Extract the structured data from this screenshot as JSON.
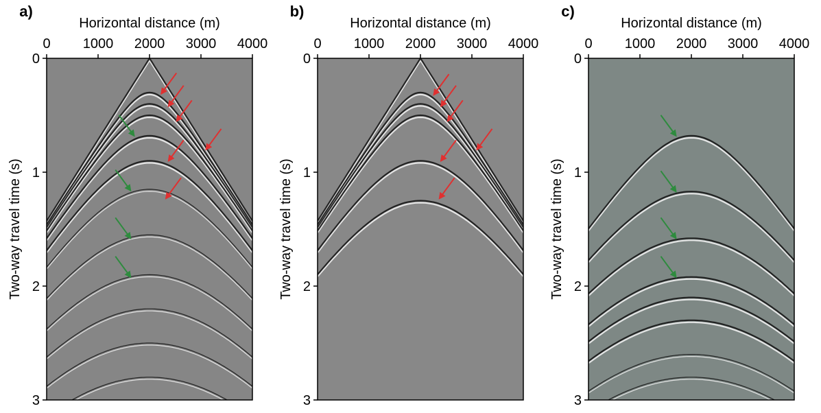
{
  "chart_data": [
    {
      "type": "seismic",
      "title": "a)",
      "xlabel": "Horizontal distance (m)",
      "ylabel": "Two-way travel time (s)",
      "xlim": [
        0,
        4000
      ],
      "ylim": [
        0,
        3
      ],
      "xticks": [
        0,
        1000,
        2000,
        3000,
        4000
      ],
      "yticks": [
        0,
        1,
        2,
        3
      ],
      "color": "#868686",
      "velocity": 1400,
      "reflections": [
        0,
        0.3,
        0.4,
        0.5,
        0.68,
        0.9,
        1.15,
        1.55,
        1.9,
        2.2,
        2.5,
        2.8
      ],
      "annotations": [
        {
          "x": 2230,
          "y": 0.31,
          "color": "#e03030"
        },
        {
          "x": 2370,
          "y": 0.42,
          "color": "#e03030"
        },
        {
          "x": 2530,
          "y": 0.55,
          "color": "#e03030"
        },
        {
          "x": 3100,
          "y": 0.8,
          "color": "#e03030"
        },
        {
          "x": 2370,
          "y": 0.9,
          "color": "#e03030"
        },
        {
          "x": 2320,
          "y": 1.23,
          "color": "#e03030"
        },
        {
          "x": 1700,
          "y": 0.68,
          "color": "#2e8b3e"
        },
        {
          "x": 1630,
          "y": 1.16,
          "color": "#2e8b3e"
        },
        {
          "x": 1630,
          "y": 1.58,
          "color": "#2e8b3e"
        },
        {
          "x": 1630,
          "y": 1.92,
          "color": "#2e8b3e"
        }
      ]
    },
    {
      "type": "seismic",
      "title": "b)",
      "xlabel": "Horizontal distance (m)",
      "ylabel": "Two-way travel time (s)",
      "xlim": [
        0,
        4000
      ],
      "ylim": [
        0,
        3
      ],
      "xticks": [
        0,
        1000,
        2000,
        3000,
        4000
      ],
      "yticks": [
        0,
        1,
        2,
        3
      ],
      "color": "#888888",
      "velocity": 1400,
      "reflections": [
        0,
        0.3,
        0.4,
        0.5,
        0.9,
        1.25
      ],
      "annotations": [
        {
          "x": 2260,
          "y": 0.32,
          "color": "#e03030"
        },
        {
          "x": 2400,
          "y": 0.42,
          "color": "#e03030"
        },
        {
          "x": 2530,
          "y": 0.55,
          "color": "#e03030"
        },
        {
          "x": 3100,
          "y": 0.8,
          "color": "#e03030"
        },
        {
          "x": 2400,
          "y": 0.9,
          "color": "#e03030"
        },
        {
          "x": 2370,
          "y": 1.23,
          "color": "#e03030"
        }
      ]
    },
    {
      "type": "seismic",
      "title": "c)",
      "xlabel": "Horizontal distance (m)",
      "ylabel": "Two-way travel time (s)",
      "xlim": [
        0,
        4000
      ],
      "ylim": [
        0,
        3
      ],
      "xticks": [
        0,
        1000,
        2000,
        3000,
        4000
      ],
      "yticks": [
        0,
        1,
        2,
        3
      ],
      "color": "#7e8885",
      "velocity": 1500,
      "reflections": [
        0.68,
        1.17,
        1.58,
        1.92,
        2.1,
        2.3,
        2.6,
        2.8
      ],
      "annotations": [
        {
          "x": 1700,
          "y": 0.68,
          "color": "#2e8b3e"
        },
        {
          "x": 1700,
          "y": 1.17,
          "color": "#2e8b3e"
        },
        {
          "x": 1700,
          "y": 1.58,
          "color": "#2e8b3e"
        },
        {
          "x": 1700,
          "y": 1.92,
          "color": "#2e8b3e"
        }
      ]
    }
  ]
}
